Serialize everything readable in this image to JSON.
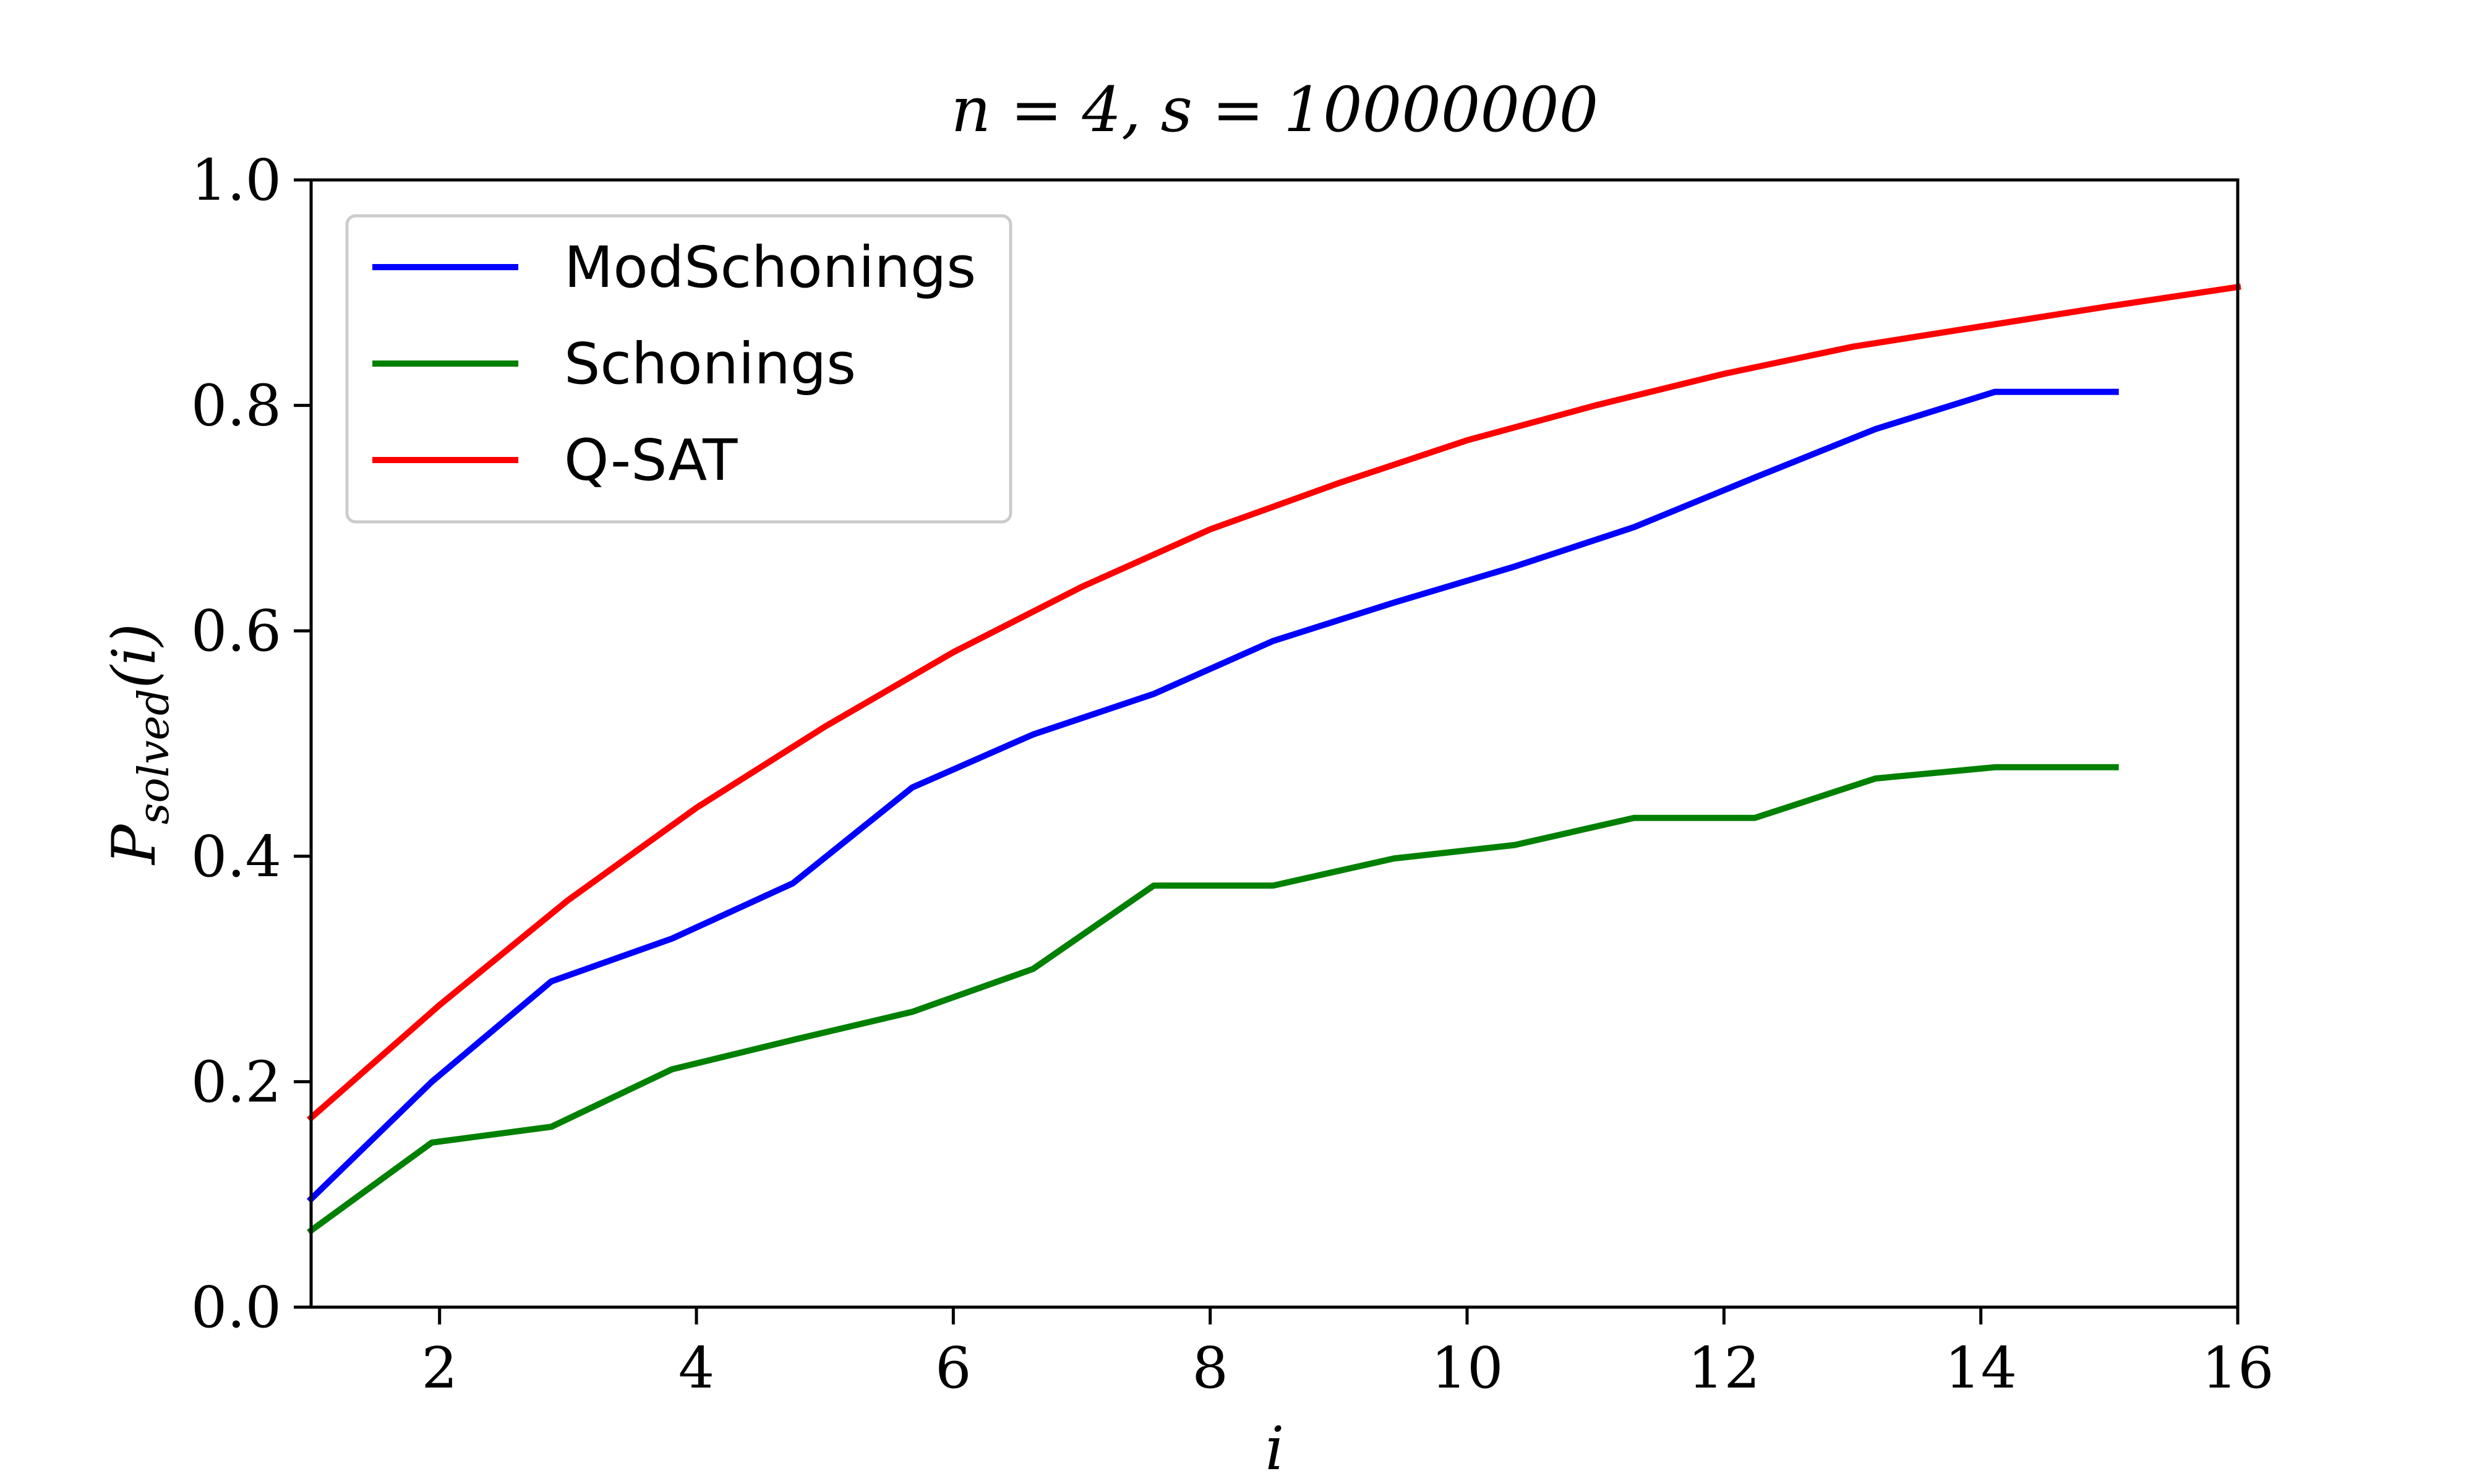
{
  "chart_data": {
    "type": "line",
    "title": "n = 4, s = 10000000",
    "xlabel": "i",
    "ylabel": {
      "main": "P",
      "sub": "solved",
      "suffix": "(i)"
    },
    "xlim": [
      1,
      16
    ],
    "ylim": [
      0.0,
      1.0
    ],
    "xticks": [
      2,
      4,
      6,
      8,
      10,
      12,
      14,
      16
    ],
    "xtick_labels": [
      "2",
      "4",
      "6",
      "8",
      "10",
      "12",
      "14",
      "16"
    ],
    "yticks": [
      0.0,
      0.2,
      0.4,
      0.6,
      0.8,
      1.0
    ],
    "ytick_labels": [
      "0.0",
      "0.2",
      "0.4",
      "0.6",
      "0.8",
      "1.0"
    ],
    "grid": false,
    "legend_position": "upper-left",
    "series": [
      {
        "name": "ModSchonings",
        "color": "#0000ff",
        "x": [
          1.0,
          1.94,
          2.87,
          3.81,
          4.75,
          5.68,
          6.62,
          7.56,
          8.49,
          9.43,
          10.37,
          11.3,
          12.24,
          13.18,
          14.11,
          15.05
        ],
        "y": [
          0.096,
          0.2,
          0.289,
          0.327,
          0.376,
          0.461,
          0.508,
          0.544,
          0.591,
          0.625,
          0.657,
          0.692,
          0.736,
          0.779,
          0.812,
          0.812
        ]
      },
      {
        "name": "Schonings",
        "color": "#008000",
        "x": [
          1.0,
          1.94,
          2.87,
          3.81,
          4.75,
          5.68,
          6.62,
          7.56,
          8.49,
          9.43,
          10.37,
          11.3,
          12.24,
          13.18,
          14.11,
          15.05
        ],
        "y": [
          0.068,
          0.146,
          0.16,
          0.211,
          0.237,
          0.262,
          0.3,
          0.374,
          0.374,
          0.398,
          0.41,
          0.434,
          0.434,
          0.469,
          0.479,
          0.479
        ]
      },
      {
        "name": "Q-SAT",
        "color": "#ff0000",
        "x": [
          1,
          2,
          3,
          4,
          5,
          6,
          7,
          8,
          9,
          10,
          11,
          12,
          13,
          14,
          15,
          16
        ],
        "y": [
          0.168,
          0.268,
          0.361,
          0.443,
          0.515,
          0.581,
          0.639,
          0.69,
          0.731,
          0.769,
          0.8,
          0.828,
          0.852,
          0.87,
          0.888,
          0.905
        ]
      }
    ]
  }
}
